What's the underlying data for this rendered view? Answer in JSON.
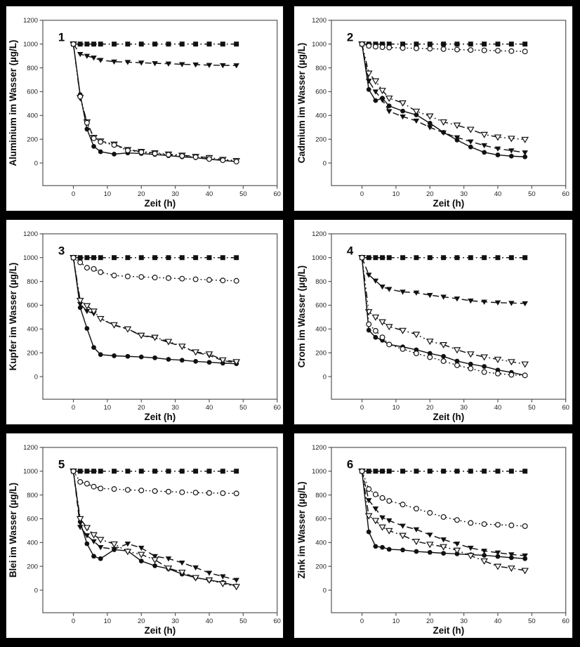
{
  "page": {
    "background": "#000000",
    "panel_background": "#ffffff",
    "ink": "#111111",
    "spine_color": "#555555"
  },
  "chart_data": [
    {
      "type": "line",
      "panel_label": "1",
      "ylabel": "Aluminium im Wasser (µg/L)",
      "xlabel": "Zeit (h)",
      "xlim": [
        -9,
        60
      ],
      "ylim": [
        -190,
        1200
      ],
      "xticks": [
        0,
        10,
        20,
        30,
        40,
        50,
        60
      ],
      "yticks": [
        0,
        200,
        400,
        600,
        800,
        1000,
        1200
      ],
      "grid": false,
      "legend": "none",
      "x": [
        0,
        2,
        4,
        6,
        8,
        12,
        16,
        20,
        24,
        28,
        32,
        36,
        40,
        44,
        48
      ],
      "series": [
        {
          "name": "control-filled-square",
          "marker": "square-filled",
          "line": "dashdot",
          "values": [
            1000,
            1000,
            1000,
            1000,
            1000,
            1000,
            1000,
            1000,
            1000,
            1000,
            1000,
            1000,
            1000,
            1000,
            1000
          ]
        },
        {
          "name": "filled-triangle-down",
          "marker": "triangle-down-filled",
          "line": "dash",
          "values": [
            1000,
            915,
            900,
            885,
            865,
            852,
            848,
            843,
            838,
            835,
            830,
            827,
            823,
            821,
            820
          ]
        },
        {
          "name": "filled-circle",
          "marker": "circle-filled",
          "line": "solid",
          "values": [
            1000,
            575,
            285,
            140,
            95,
            75,
            85,
            80,
            72,
            62,
            52,
            45,
            32,
            22,
            12
          ]
        },
        {
          "name": "open-triangle-down",
          "marker": "triangle-down-open",
          "line": "dashdotdot",
          "values": [
            1000,
            550,
            345,
            215,
            185,
            158,
            112,
            97,
            85,
            75,
            65,
            55,
            45,
            30,
            20
          ]
        },
        {
          "name": "open-circle",
          "marker": "circle-open",
          "line": "dot",
          "values": [
            1000,
            558,
            338,
            208,
            178,
            152,
            106,
            92,
            80,
            70,
            60,
            50,
            34,
            24,
            12
          ]
        }
      ]
    },
    {
      "type": "line",
      "panel_label": "2",
      "ylabel": "Cadmium im Wasser (µg/L)",
      "xlabel": "Zeit (h)",
      "xlim": [
        -9,
        60
      ],
      "ylim": [
        -190,
        1200
      ],
      "xticks": [
        0,
        10,
        20,
        30,
        40,
        50,
        60
      ],
      "yticks": [
        0,
        200,
        400,
        600,
        800,
        1000,
        1200
      ],
      "grid": false,
      "legend": "none",
      "x": [
        0,
        2,
        4,
        6,
        8,
        12,
        16,
        20,
        24,
        28,
        32,
        36,
        40,
        44,
        48
      ],
      "series": [
        {
          "name": "control-filled-square",
          "marker": "square-filled",
          "line": "dashdot",
          "values": [
            1000,
            1000,
            1000,
            1000,
            1000,
            1000,
            1000,
            1000,
            1000,
            1000,
            1000,
            1000,
            1000,
            1000,
            1000
          ]
        },
        {
          "name": "filled-triangle-down",
          "marker": "triangle-down-filled",
          "line": "dash",
          "values": [
            1000,
            690,
            600,
            530,
            435,
            390,
            355,
            300,
            255,
            215,
            180,
            148,
            120,
            105,
            88
          ]
        },
        {
          "name": "filled-circle",
          "marker": "circle-filled",
          "line": "solid",
          "values": [
            1000,
            618,
            525,
            545,
            480,
            437,
            405,
            335,
            258,
            193,
            135,
            90,
            68,
            58,
            52
          ]
        },
        {
          "name": "open-triangle-down",
          "marker": "triangle-down-open",
          "line": "dashdotdot",
          "values": [
            1000,
            755,
            690,
            610,
            545,
            505,
            435,
            395,
            345,
            318,
            283,
            240,
            218,
            207,
            198
          ]
        },
        {
          "name": "open-circle",
          "marker": "circle-open",
          "line": "dot",
          "values": [
            1000,
            985,
            978,
            974,
            971,
            967,
            964,
            961,
            958,
            954,
            950,
            947,
            944,
            941,
            938
          ]
        }
      ]
    },
    {
      "type": "line",
      "panel_label": "3",
      "ylabel": "Kupfer im Wasser (µg/L)",
      "xlabel": "Zeit (h)",
      "xlim": [
        -9,
        60
      ],
      "ylim": [
        -190,
        1200
      ],
      "xticks": [
        0,
        10,
        20,
        30,
        40,
        50,
        60
      ],
      "yticks": [
        0,
        200,
        400,
        600,
        800,
        1000,
        1200
      ],
      "grid": false,
      "legend": "none",
      "x": [
        0,
        2,
        4,
        6,
        8,
        12,
        16,
        20,
        24,
        28,
        32,
        36,
        40,
        44,
        48
      ],
      "series": [
        {
          "name": "control-filled-square",
          "marker": "square-filled",
          "line": "dashdot",
          "values": [
            1000,
            1000,
            1000,
            1000,
            1000,
            1000,
            1000,
            1000,
            1000,
            1000,
            1000,
            1000,
            1000,
            1000,
            1000
          ]
        },
        {
          "name": "filled-triangle-down",
          "marker": "triangle-down-filled",
          "line": "dash",
          "values": [
            1000,
            610,
            550,
            530,
            485,
            432,
            398,
            345,
            325,
            288,
            252,
            205,
            178,
            135,
            115
          ]
        },
        {
          "name": "filled-circle",
          "marker": "circle-filled",
          "line": "solid",
          "values": [
            1000,
            580,
            405,
            245,
            185,
            175,
            170,
            165,
            158,
            145,
            138,
            128,
            120,
            113,
            108
          ]
        },
        {
          "name": "open-triangle-down",
          "marker": "triangle-down-open",
          "line": "dashdotdot",
          "values": [
            1000,
            640,
            595,
            550,
            487,
            435,
            400,
            347,
            330,
            295,
            255,
            207,
            190,
            140,
            125
          ]
        },
        {
          "name": "open-circle",
          "marker": "circle-open",
          "line": "dot",
          "values": [
            1000,
            960,
            915,
            905,
            878,
            850,
            842,
            838,
            833,
            828,
            823,
            818,
            813,
            808,
            805
          ]
        }
      ]
    },
    {
      "type": "line",
      "panel_label": "4",
      "ylabel": "Crom im Wasser (µg/L)",
      "xlabel": "Zeit (h)",
      "xlim": [
        -9,
        60
      ],
      "ylim": [
        -190,
        1200
      ],
      "xticks": [
        0,
        10,
        20,
        30,
        40,
        50,
        60
      ],
      "yticks": [
        0,
        200,
        400,
        600,
        800,
        1000,
        1200
      ],
      "grid": false,
      "legend": "none",
      "x": [
        0,
        2,
        4,
        6,
        8,
        12,
        16,
        20,
        24,
        28,
        32,
        36,
        40,
        44,
        48
      ],
      "series": [
        {
          "name": "control-filled-square",
          "marker": "square-filled",
          "line": "dashdot",
          "values": [
            1000,
            1000,
            1000,
            1000,
            1000,
            1000,
            1000,
            1000,
            1000,
            1000,
            1000,
            1000,
            1000,
            1000,
            1000
          ]
        },
        {
          "name": "filled-triangle-down",
          "marker": "triangle-down-filled",
          "line": "dash",
          "values": [
            1000,
            855,
            805,
            755,
            735,
            712,
            705,
            685,
            670,
            655,
            638,
            628,
            622,
            618,
            615
          ]
        },
        {
          "name": "filled-circle",
          "marker": "circle-filled",
          "line": "solid",
          "values": [
            1000,
            390,
            330,
            305,
            270,
            250,
            225,
            195,
            170,
            130,
            105,
            85,
            55,
            35,
            10
          ]
        },
        {
          "name": "open-triangle-down",
          "marker": "triangle-down-open",
          "line": "dashdotdot",
          "values": [
            1000,
            545,
            500,
            460,
            420,
            388,
            355,
            297,
            268,
            225,
            190,
            165,
            145,
            125,
            105
          ]
        },
        {
          "name": "open-circle",
          "marker": "circle-open",
          "line": "dot",
          "values": [
            1000,
            440,
            385,
            330,
            270,
            232,
            195,
            163,
            130,
            95,
            68,
            38,
            25,
            15,
            10
          ]
        }
      ]
    },
    {
      "type": "line",
      "panel_label": "5",
      "ylabel": "Blei im Wasser (µg/L)",
      "xlabel": "Zeit (h)",
      "xlim": [
        -9,
        60
      ],
      "ylim": [
        -190,
        1200
      ],
      "xticks": [
        0,
        10,
        20,
        30,
        40,
        50,
        60
      ],
      "yticks": [
        0,
        200,
        400,
        600,
        800,
        1000,
        1200
      ],
      "grid": false,
      "legend": "none",
      "x": [
        0,
        2,
        4,
        6,
        8,
        12,
        16,
        20,
        24,
        28,
        32,
        36,
        40,
        44,
        48
      ],
      "series": [
        {
          "name": "control-filled-square",
          "marker": "square-filled",
          "line": "dashdot",
          "values": [
            1000,
            1000,
            1000,
            1000,
            1000,
            1000,
            1000,
            1000,
            1000,
            1000,
            1000,
            1000,
            1000,
            1000,
            1000
          ]
        },
        {
          "name": "filled-triangle-down",
          "marker": "triangle-down-filled",
          "line": "dash",
          "values": [
            1000,
            530,
            460,
            410,
            360,
            345,
            390,
            355,
            285,
            265,
            230,
            190,
            145,
            115,
            85
          ]
        },
        {
          "name": "filled-circle",
          "marker": "circle-filled",
          "line": "solid",
          "values": [
            1000,
            575,
            390,
            285,
            265,
            340,
            330,
            245,
            205,
            180,
            135,
            105,
            85,
            65,
            35
          ]
        },
        {
          "name": "open-triangle-down",
          "marker": "triangle-down-open",
          "line": "dashdotdot",
          "values": [
            1000,
            600,
            525,
            465,
            425,
            388,
            325,
            300,
            255,
            185,
            150,
            105,
            85,
            55,
            30
          ]
        },
        {
          "name": "open-circle",
          "marker": "circle-open",
          "line": "dot",
          "values": [
            1000,
            910,
            895,
            870,
            855,
            850,
            843,
            838,
            833,
            828,
            823,
            820,
            817,
            815,
            813
          ]
        }
      ]
    },
    {
      "type": "line",
      "panel_label": "6",
      "ylabel": "Zink im Wasser (µg/L)",
      "xlabel": "Zeit (h)",
      "xlim": [
        -9,
        60
      ],
      "ylim": [
        -190,
        1200
      ],
      "xticks": [
        0,
        10,
        20,
        30,
        40,
        50,
        60
      ],
      "yticks": [
        0,
        200,
        400,
        600,
        800,
        1000,
        1200
      ],
      "grid": false,
      "legend": "none",
      "x": [
        0,
        2,
        4,
        6,
        8,
        12,
        16,
        20,
        24,
        28,
        32,
        36,
        40,
        44,
        48
      ],
      "series": [
        {
          "name": "control-filled-square",
          "marker": "square-filled",
          "line": "dashdot",
          "values": [
            1000,
            1000,
            1000,
            1000,
            1000,
            1000,
            1000,
            1000,
            1000,
            1000,
            1000,
            1000,
            1000,
            1000,
            1000
          ]
        },
        {
          "name": "filled-triangle-down",
          "marker": "triangle-down-filled",
          "line": "dash",
          "values": [
            1000,
            755,
            685,
            610,
            585,
            540,
            510,
            465,
            425,
            390,
            355,
            330,
            315,
            300,
            290
          ]
        },
        {
          "name": "filled-circle",
          "marker": "circle-filled",
          "line": "solid",
          "values": [
            1000,
            490,
            368,
            360,
            343,
            338,
            325,
            318,
            310,
            305,
            298,
            293,
            283,
            273,
            265
          ]
        },
        {
          "name": "open-triangle-down",
          "marker": "triangle-down-open",
          "line": "dashdotdot",
          "values": [
            1000,
            625,
            585,
            530,
            500,
            460,
            410,
            385,
            365,
            335,
            290,
            245,
            200,
            185,
            165
          ]
        },
        {
          "name": "open-circle",
          "marker": "circle-open",
          "line": "dot",
          "values": [
            1000,
            850,
            805,
            775,
            750,
            720,
            685,
            650,
            615,
            590,
            565,
            555,
            550,
            545,
            538
          ]
        }
      ]
    }
  ]
}
